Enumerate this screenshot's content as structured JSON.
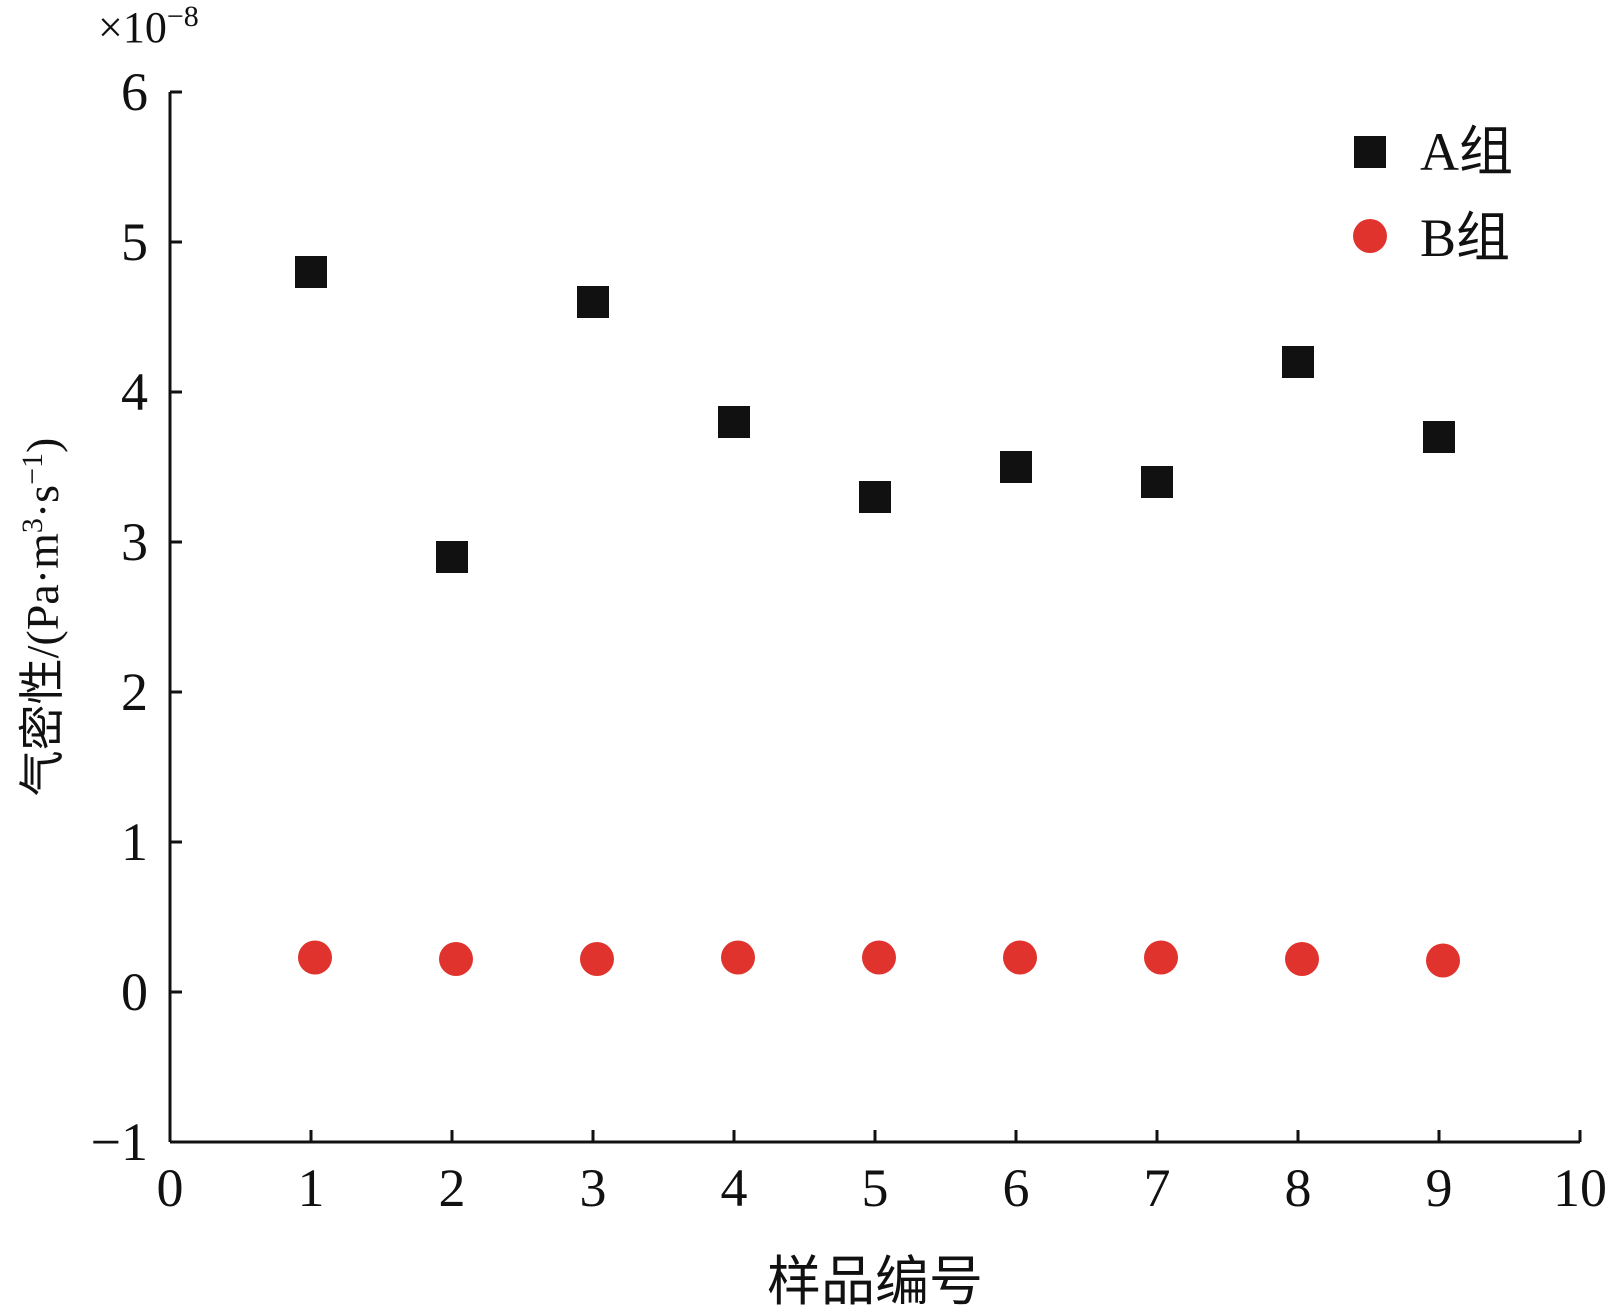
{
  "chart_data": {
    "type": "scatter",
    "title": "",
    "xlabel": "样品编号",
    "ylabel_prefix": "气密性/(Pa·m",
    "ylabel_sup1": "3",
    "ylabel_mid": "·s",
    "ylabel_sup2": "−1",
    "ylabel_suffix": ")",
    "y_multiplier_base": "×10",
    "y_multiplier_exp": "−8",
    "xlim": [
      0,
      10
    ],
    "ylim": [
      -1,
      6
    ],
    "xticks": [
      0,
      1,
      2,
      3,
      4,
      5,
      6,
      7,
      8,
      9,
      10
    ],
    "yticks": [
      -1,
      0,
      1,
      2,
      3,
      4,
      5,
      6
    ],
    "xtick_labels": [
      "0",
      "1",
      "2",
      "3",
      "4",
      "5",
      "6",
      "7",
      "8",
      "9",
      "10"
    ],
    "ytick_labels": [
      "−1",
      "0",
      "1",
      "2",
      "3",
      "4",
      "5",
      "6"
    ],
    "grid": false,
    "legend_position": "top-right",
    "series": [
      {
        "name": "A组",
        "marker": "square",
        "color": "#111111",
        "x": [
          1,
          2,
          3,
          4,
          5,
          6,
          7,
          8,
          9
        ],
        "y": [
          4.8,
          2.9,
          4.6,
          3.8,
          3.3,
          3.5,
          3.4,
          4.2,
          3.7
        ]
      },
      {
        "name": "B组",
        "marker": "circle",
        "color": "#e0332e",
        "x": [
          1,
          2,
          3,
          4,
          5,
          6,
          7,
          8,
          9
        ],
        "y": [
          0.23,
          0.22,
          0.22,
          0.23,
          0.23,
          0.23,
          0.23,
          0.22,
          0.21
        ]
      }
    ]
  }
}
